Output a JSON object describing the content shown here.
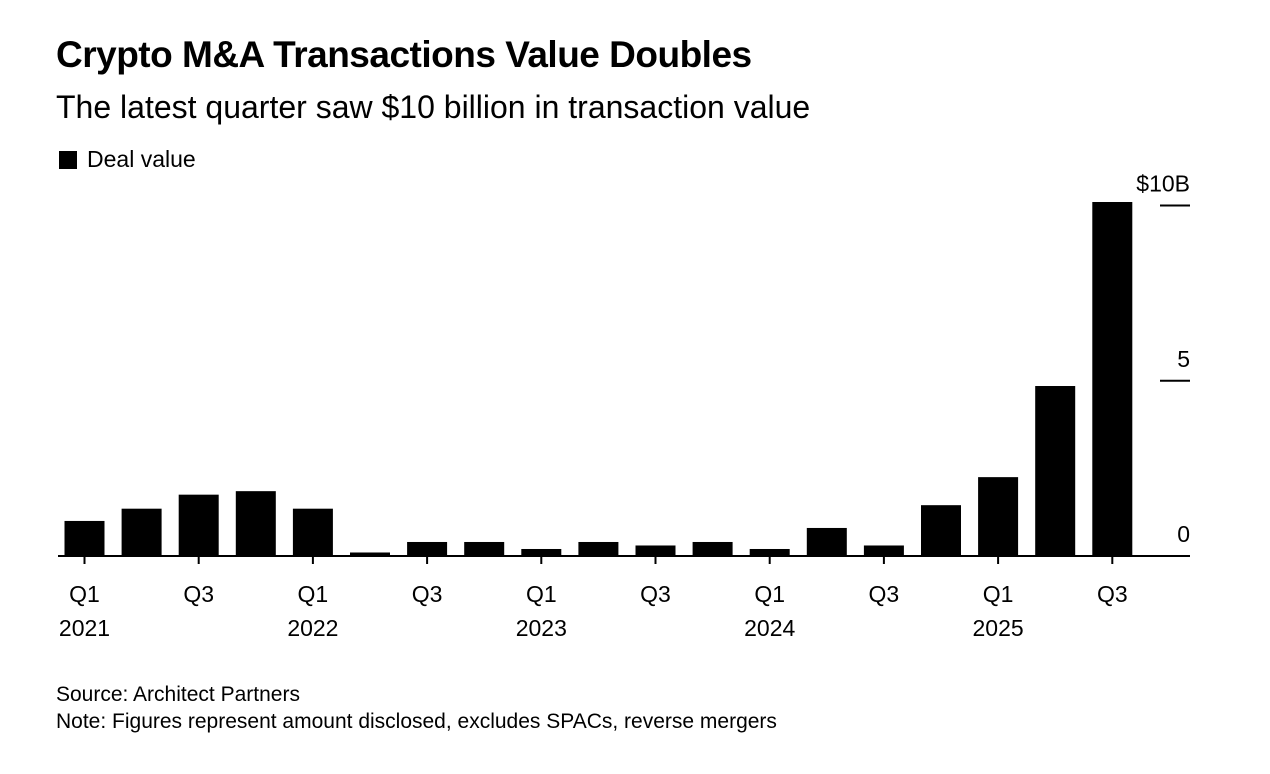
{
  "title": "Crypto M&A Transactions Value Doubles",
  "subtitle": "The latest quarter saw $10 billion in transaction value",
  "legend": {
    "label": "Deal value",
    "color": "#000000"
  },
  "source": "Source: Architect Partners",
  "note": "Note: Figures represent amount disclosed, excludes SPACs, reverse mergers",
  "chart_data": {
    "type": "bar",
    "categories": [
      "Q1 2021",
      "Q2 2021",
      "Q3 2021",
      "Q4 2021",
      "Q1 2022",
      "Q2 2022",
      "Q3 2022",
      "Q4 2022",
      "Q1 2023",
      "Q2 2023",
      "Q3 2023",
      "Q4 2023",
      "Q1 2024",
      "Q2 2024",
      "Q3 2024",
      "Q4 2024",
      "Q1 2025",
      "Q2 2025",
      "Q3 2025"
    ],
    "series": [
      {
        "name": "Deal value",
        "values": [
          1.0,
          1.35,
          1.75,
          1.85,
          1.35,
          0.1,
          0.4,
          0.4,
          0.2,
          0.4,
          0.3,
          0.4,
          0.2,
          0.8,
          0.3,
          1.45,
          2.25,
          4.85,
          10.1
        ]
      }
    ],
    "x_tick_labels": [
      {
        "category_index": 0,
        "quarter": "Q1",
        "year": "2021"
      },
      {
        "category_index": 2,
        "quarter": "Q3",
        "year": ""
      },
      {
        "category_index": 4,
        "quarter": "Q1",
        "year": "2022"
      },
      {
        "category_index": 6,
        "quarter": "Q3",
        "year": ""
      },
      {
        "category_index": 8,
        "quarter": "Q1",
        "year": "2023"
      },
      {
        "category_index": 10,
        "quarter": "Q3",
        "year": ""
      },
      {
        "category_index": 12,
        "quarter": "Q1",
        "year": "2024"
      },
      {
        "category_index": 14,
        "quarter": "Q3",
        "year": ""
      },
      {
        "category_index": 16,
        "quarter": "Q1",
        "year": "2025"
      },
      {
        "category_index": 18,
        "quarter": "Q3",
        "year": ""
      }
    ],
    "y_ticks": [
      {
        "value": 0,
        "label": "0"
      },
      {
        "value": 5,
        "label": "5"
      },
      {
        "value": 10,
        "label": "$10B"
      }
    ],
    "ylim": [
      0,
      10.5
    ],
    "y_axis_side": "right",
    "grid": false,
    "legend_position": "top-left",
    "bar_color": "#000000"
  }
}
